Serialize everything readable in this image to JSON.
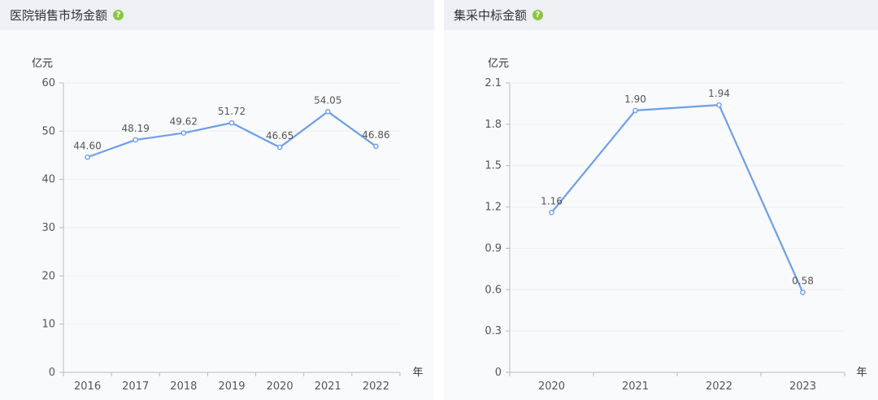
{
  "panels": [
    {
      "title": "医院销售市场金额",
      "help_icon": "question-icon"
    },
    {
      "title": "集采中标金额",
      "help_icon": "question-icon"
    }
  ],
  "colors": {
    "line": "#6d9eeb",
    "grid": "#eceef2",
    "axis": "#999999",
    "text": "#555555"
  },
  "chart_data": [
    {
      "type": "line",
      "categories": [
        "2016",
        "2017",
        "2018",
        "2019",
        "2020",
        "2021",
        "2022"
      ],
      "series": [
        {
          "values": [
            44.6,
            48.19,
            49.62,
            51.72,
            46.65,
            54.05,
            46.86
          ]
        }
      ],
      "data_labels": [
        "44.60",
        "48.19",
        "49.62",
        "51.72",
        "46.65",
        "54.05",
        "46.86"
      ],
      "yticks": [
        "0",
        "10",
        "20",
        "30",
        "40",
        "50",
        "60"
      ],
      "ylim": [
        0,
        60
      ],
      "ylabel": "亿元",
      "xlabel": "年",
      "grid": true
    },
    {
      "type": "line",
      "categories": [
        "2020",
        "2021",
        "2022",
        "2023"
      ],
      "series": [
        {
          "values": [
            1.16,
            1.9,
            1.94,
            0.58
          ]
        }
      ],
      "data_labels": [
        "1.16",
        "1.90",
        "1.94",
        "0.58"
      ],
      "yticks": [
        "0",
        "0.3",
        "0.6",
        "0.9",
        "1.2",
        "1.5",
        "1.8",
        "2.1"
      ],
      "ylim": [
        0,
        2.1
      ],
      "ylabel": "亿元",
      "xlabel": "年",
      "grid": true
    }
  ]
}
